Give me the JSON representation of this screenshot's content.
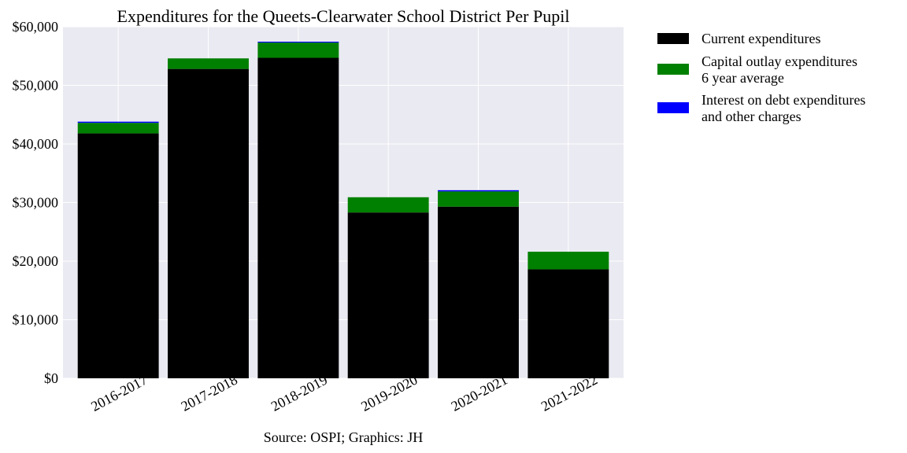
{
  "chart_data": {
    "type": "bar",
    "stacked": true,
    "title": "Expenditures for the Queets-Clearwater School District Per Pupil",
    "xlabel": "",
    "ylabel": "",
    "source": "Source: OSPI; Graphics: JH",
    "categories": [
      "2016-2017",
      "2017-2018",
      "2018-2019",
      "2019-2020",
      "2020-2021",
      "2021-2022"
    ],
    "ylim": [
      0,
      60000
    ],
    "yticks": [
      0,
      10000,
      20000,
      30000,
      40000,
      50000,
      60000
    ],
    "ytick_labels": [
      "$0",
      "$10,000",
      "$20,000",
      "$30,000",
      "$40,000",
      "$50,000",
      "$60,000"
    ],
    "grid": true,
    "legend_position": "outside-top-right",
    "series": [
      {
        "name": "Current expenditures",
        "color": "#000000",
        "values": [
          41800,
          52800,
          54700,
          28300,
          29300,
          18600
        ]
      },
      {
        "name_lines": [
          "Capital outlay expenditures",
          "6 year average"
        ],
        "color": "#008000",
        "values": [
          1800,
          1800,
          2600,
          2600,
          2600,
          3000
        ]
      },
      {
        "name_lines": [
          "Interest on debt expenditures",
          "and other charges"
        ],
        "color": "#0000ff",
        "values": [
          200,
          0,
          150,
          0,
          200,
          0
        ]
      }
    ]
  }
}
